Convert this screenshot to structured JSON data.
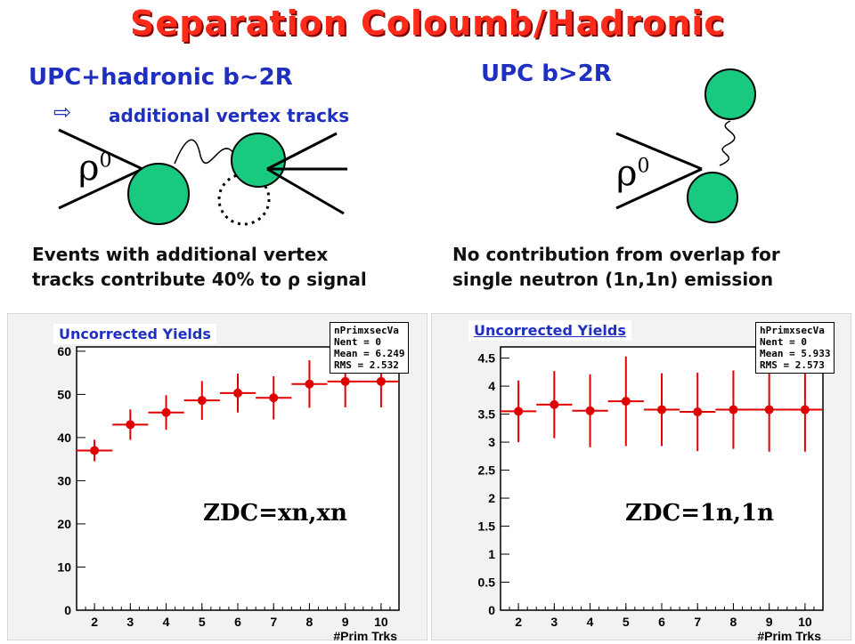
{
  "slide": {
    "title": "Separation Coloumb/Hadronic",
    "left_heading": "UPC+hadronic b~2R",
    "right_heading": "UPC  b>2R",
    "arrow_symbol": "⇨",
    "arrow_note": "additional vertex tracks",
    "rho_label": "ρ",
    "rho_sup": "0",
    "left_caption_line1": "Events with additional vertex",
    "left_caption_line2": "tracks contribute 40% to ρ signal",
    "right_caption_line1": "No contribution from overlap for",
    "right_caption_line2": "single neutron (1n,1n) emission"
  },
  "chart_data": [
    {
      "type": "scatter",
      "title": "Uncorrected Yields",
      "annotation": "ZDC=xn,xn",
      "xlabel": "#Prim Trks",
      "ylabel": "",
      "xlim": [
        1.5,
        10.5
      ],
      "ylim": [
        0,
        61
      ],
      "xticks": [
        2,
        3,
        4,
        5,
        6,
        7,
        8,
        9,
        10
      ],
      "yticks": [
        0,
        10,
        20,
        30,
        40,
        50,
        60
      ],
      "grid": false,
      "legend": "top-right",
      "stats": {
        "name": "nPrimxsecVa",
        "Nent": "Nent = 0",
        "Mean": "Mean = 6.249",
        "RMS": "RMS = 2.532"
      },
      "series": [
        {
          "x": [
            2,
            3,
            4,
            5,
            6,
            7,
            8,
            9,
            10
          ],
          "y": [
            37,
            43,
            45.8,
            48.6,
            50.3,
            49.2,
            52.4,
            53,
            53
          ],
          "yerr": [
            2.5,
            3.5,
            4,
            4.5,
            4.5,
            5,
            5.5,
            6,
            6
          ],
          "color": "#e00000"
        }
      ]
    },
    {
      "type": "scatter",
      "title": "Uncorrected Yields",
      "annotation": "ZDC=1n,1n",
      "xlabel": "#Prim Trks",
      "ylabel": "",
      "xlim": [
        1.5,
        10.5
      ],
      "ylim": [
        0,
        4.7
      ],
      "xticks": [
        2,
        3,
        4,
        5,
        6,
        7,
        8,
        9,
        10
      ],
      "yticks": [
        0,
        0.5,
        1,
        1.5,
        2,
        2.5,
        3,
        3.5,
        4,
        4.5
      ],
      "grid": false,
      "legend": "top-right",
      "stats": {
        "name": "hPrimxsecVa",
        "Nent": "Nent = 0",
        "Mean": "Mean = 5.933",
        "RMS": "RMS = 2.573"
      },
      "series": [
        {
          "x": [
            2,
            3,
            4,
            5,
            6,
            7,
            8,
            9,
            10
          ],
          "y": [
            3.55,
            3.67,
            3.56,
            3.73,
            3.58,
            3.54,
            3.58,
            3.58,
            3.58
          ],
          "yerr": [
            0.55,
            0.6,
            0.65,
            0.8,
            0.65,
            0.7,
            0.7,
            0.75,
            0.75
          ],
          "color": "#e00000"
        }
      ]
    }
  ]
}
